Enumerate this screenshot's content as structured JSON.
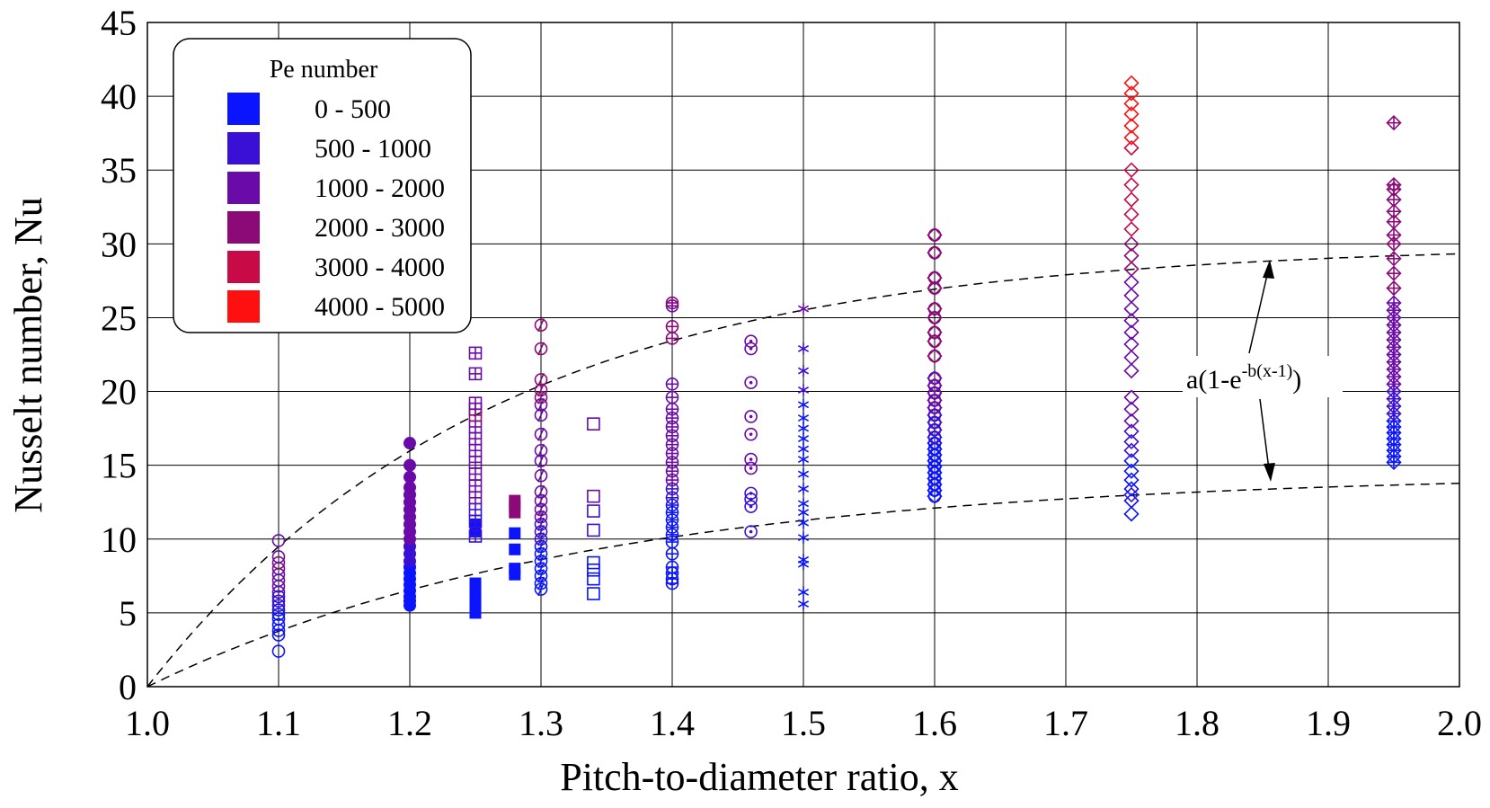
{
  "chart_data": {
    "type": "scatter",
    "xlabel": "Pitch-to-diameter ratio, x",
    "ylabel": "Nusselt number, Nu",
    "xlim": [
      1.0,
      2.0
    ],
    "ylim": [
      0,
      45
    ],
    "xticks": [
      "1.0",
      "1.1",
      "1.2",
      "1.3",
      "1.4",
      "1.5",
      "1.6",
      "1.7",
      "1.8",
      "1.9",
      "2.0"
    ],
    "yticks": [
      "0",
      "5",
      "10",
      "15",
      "20",
      "25",
      "30",
      "35",
      "40",
      "45"
    ],
    "grid": true,
    "legend": {
      "title": "Pe number",
      "placement": "top-left",
      "entries": [
        {
          "label": "0 - 500",
          "color": "#0a14ff"
        },
        {
          "label": "500 - 1000",
          "color": "#3a10d6"
        },
        {
          "label": "1000 - 2000",
          "color": "#6a0aa8"
        },
        {
          "label": "2000 - 3000",
          "color": "#8c0a78"
        },
        {
          "label": "3000 - 4000",
          "color": "#c80a46"
        },
        {
          "label": "4000 - 5000",
          "color": "#ff1010"
        }
      ]
    },
    "fits": {
      "formula": "a(1-e-b(x-1))",
      "formula_base": "a(1-e",
      "formula_sup": "-b(x-1)",
      "formula_close": ")",
      "curves": [
        {
          "a": 30,
          "b": 3.8,
          "style": "dashed"
        },
        {
          "a": 14.5,
          "b": 3.0,
          "style": "dashed"
        }
      ]
    },
    "series": [
      {
        "x": 1.1,
        "marker": "circle",
        "y": [
          2.4,
          3.5,
          3.8,
          4.2,
          4.6,
          4.9,
          5.2,
          5.5,
          5.8,
          6.1,
          6.4,
          6.8,
          7.2,
          7.6,
          8.0,
          8.4,
          8.8,
          9.9
        ],
        "pe": [
          1,
          1,
          1,
          1,
          1,
          1,
          1,
          2,
          2,
          2,
          2,
          3,
          3,
          3,
          3,
          4,
          3,
          3
        ]
      },
      {
        "x": 1.2,
        "marker": "filled-circle",
        "y": [
          5.5,
          5.8,
          6.1,
          6.5,
          6.9,
          7.3,
          7.7,
          8.1,
          8.5,
          9.0,
          9.5,
          10.0,
          10.5,
          11.0,
          11.5,
          12.0,
          12.5,
          13.0,
          13.5,
          14.2,
          15.0,
          16.5
        ],
        "pe": [
          1,
          1,
          1,
          1,
          1,
          1,
          1,
          1,
          2,
          2,
          2,
          3,
          3,
          3,
          3,
          3,
          3,
          3,
          3,
          3,
          3,
          3
        ]
      },
      {
        "x": 1.25,
        "marker": "filled-square",
        "y": [
          5.0,
          5.4,
          5.8,
          6.2,
          6.6,
          7.0,
          10.5,
          11.0
        ],
        "pe": [
          1,
          1,
          1,
          1,
          1,
          1,
          1,
          1
        ]
      },
      {
        "x": 1.25,
        "marker": "square-plus",
        "y": [
          10.2,
          11.2,
          12.0,
          12.8,
          13.6,
          14.4,
          15.2,
          16.0,
          16.8,
          17.6,
          18.4,
          18.8,
          19.2,
          21.2,
          22.6
        ],
        "pe": [
          2,
          2,
          2,
          3,
          3,
          3,
          3,
          3,
          3,
          3,
          4,
          4,
          3,
          3,
          3
        ]
      },
      {
        "x": 1.28,
        "marker": "filled-square",
        "y": [
          7.6,
          8.0,
          9.3,
          10.4,
          11.8,
          12.3,
          12.6
        ],
        "pe": [
          1,
          1,
          1,
          1,
          4,
          4,
          4
        ]
      },
      {
        "x": 1.3,
        "marker": "circle-slash",
        "y": [
          6.6,
          7.0,
          7.5,
          8.0,
          8.5,
          9.0,
          9.5,
          10.0,
          10.5,
          11.0,
          11.5,
          12.0,
          12.6,
          13.2,
          14.3,
          15.3,
          16.0,
          17.1,
          18.4,
          19.1,
          19.6,
          20.1,
          20.8,
          22.9,
          24.5
        ],
        "pe": [
          1,
          1,
          1,
          1,
          1,
          1,
          1,
          2,
          2,
          2,
          3,
          3,
          3,
          3,
          3,
          3,
          3,
          3,
          3,
          3,
          4,
          4,
          4,
          4,
          4
        ]
      },
      {
        "x": 1.34,
        "marker": "square",
        "y": [
          6.3,
          7.3,
          7.9,
          8.4,
          10.6,
          11.9,
          12.9,
          17.8
        ],
        "pe": [
          1,
          1,
          1,
          1,
          2,
          2,
          3,
          3
        ]
      },
      {
        "x": 1.4,
        "marker": "circle-cross",
        "y": [
          7.0,
          7.3,
          7.7,
          8.1,
          9.0,
          9.8,
          10.3,
          10.8,
          11.3,
          11.8,
          12.3,
          12.8,
          13.4,
          14.0,
          14.6,
          15.2,
          15.8,
          16.4,
          17.0,
          17.6,
          18.2,
          18.8,
          19.6,
          20.5,
          23.6,
          24.4,
          25.8,
          26.0
        ],
        "pe": [
          1,
          1,
          1,
          1,
          1,
          1,
          1,
          1,
          1,
          1,
          1,
          2,
          2,
          3,
          3,
          3,
          3,
          3,
          3,
          3,
          3,
          3,
          3,
          3,
          4,
          4,
          3,
          4
        ]
      },
      {
        "x": 1.46,
        "marker": "circle-dot",
        "y": [
          10.5,
          12.2,
          12.7,
          13.1,
          14.8,
          15.4,
          17.1,
          18.3,
          20.6,
          22.9,
          23.4
        ],
        "pe": [
          2,
          2,
          2,
          2,
          3,
          3,
          3,
          3,
          3,
          3,
          3
        ]
      },
      {
        "x": 1.5,
        "marker": "asterisk",
        "y": [
          5.6,
          6.4,
          8.3,
          8.6,
          10.1,
          11.1,
          11.8,
          12.4,
          13.4,
          14.4,
          15.4,
          16.1,
          16.8,
          17.5,
          18.2,
          19.1,
          20.1,
          21.4,
          22.9,
          25.6
        ],
        "pe": [
          1,
          1,
          1,
          1,
          1,
          1,
          1,
          1,
          1,
          1,
          1,
          1,
          1,
          1,
          1,
          1,
          2,
          2,
          2,
          3
        ]
      },
      {
        "x": 1.6,
        "marker": "diamond-circle",
        "y": [
          12.9,
          13.3,
          13.7,
          14.1,
          14.5,
          14.9,
          15.3,
          15.7,
          16.1,
          16.5,
          16.9,
          17.4,
          17.9,
          18.4,
          18.9,
          19.4,
          19.9,
          20.4,
          20.9,
          22.4,
          23.4,
          24.0,
          25.0,
          25.6,
          27.0,
          27.7,
          29.4,
          30.6
        ],
        "pe": [
          1,
          1,
          1,
          1,
          1,
          1,
          1,
          1,
          1,
          1,
          2,
          2,
          2,
          2,
          3,
          3,
          3,
          3,
          3,
          4,
          4,
          4,
          4,
          4,
          4,
          4,
          4,
          4
        ]
      },
      {
        "x": 1.75,
        "marker": "diamond",
        "y": [
          11.7,
          12.6,
          13.0,
          13.4,
          14.0,
          14.6,
          15.3,
          16.0,
          16.6,
          17.3,
          18.0,
          18.8,
          19.6,
          21.4,
          22.3,
          23.2,
          24.0,
          24.8,
          25.6,
          26.5,
          27.4,
          28.3,
          29.2,
          30.0,
          31.0,
          32.0,
          33.0,
          34.0,
          35.0,
          36.5,
          37.2,
          38.0,
          38.8,
          39.5,
          40.2,
          40.9
        ],
        "pe": [
          1,
          1,
          2,
          1,
          1,
          1,
          1,
          2,
          2,
          2,
          3,
          3,
          3,
          3,
          3,
          3,
          3,
          3,
          3,
          3,
          3,
          4,
          4,
          4,
          5,
          5,
          5,
          5,
          5,
          5,
          6,
          6,
          6,
          6,
          6,
          6
        ]
      },
      {
        "x": 1.95,
        "marker": "diamond-plus",
        "y": [
          15.2,
          15.6,
          16.0,
          16.4,
          16.8,
          17.2,
          17.6,
          18.0,
          18.5,
          19.0,
          19.5,
          20.0,
          20.5,
          21.0,
          21.5,
          22.0,
          22.5,
          23.0,
          23.5,
          24.0,
          24.5,
          25.0,
          25.5,
          26.0,
          27.0,
          28.0,
          29.0,
          30.0,
          30.6,
          31.5,
          32.2,
          33.0,
          33.7,
          34.0,
          38.2
        ],
        "pe": [
          1,
          1,
          1,
          1,
          1,
          1,
          1,
          1,
          2,
          2,
          2,
          2,
          3,
          3,
          3,
          3,
          3,
          3,
          3,
          3,
          3,
          3,
          3,
          3,
          4,
          4,
          4,
          4,
          4,
          4,
          4,
          4,
          4,
          4,
          4
        ]
      }
    ]
  }
}
